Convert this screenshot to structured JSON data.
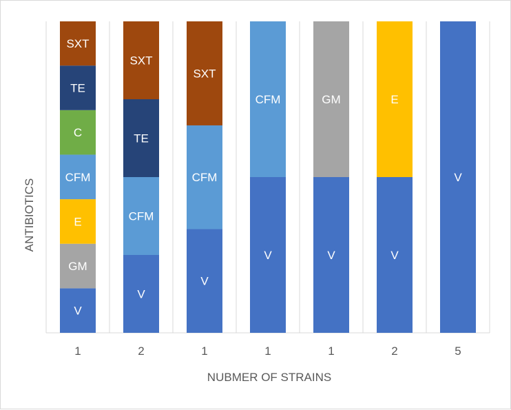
{
  "chart_data": {
    "type": "bar",
    "stacked": true,
    "title": "",
    "xlabel": "NUBMER OF STRAINS",
    "ylabel": "ANTIBIOTICS",
    "ylim": [
      0,
      100
    ],
    "grid": false,
    "legend": "none",
    "colors": {
      "V": "#4472c4",
      "GM": "#a5a5a5",
      "E": "#ffc000",
      "CFM": "#5b9bd5",
      "C": "#70ad47",
      "TE": "#264478",
      "SXT": "#9e480e"
    },
    "bars": [
      {
        "category": "1",
        "segments": [
          {
            "label": "V",
            "value": 14.3
          },
          {
            "label": "GM",
            "value": 14.3
          },
          {
            "label": "E",
            "value": 14.3
          },
          {
            "label": "CFM",
            "value": 14.3
          },
          {
            "label": "C",
            "value": 14.3
          },
          {
            "label": "TE",
            "value": 14.3
          },
          {
            "label": "SXT",
            "value": 14.2
          }
        ]
      },
      {
        "category": "2",
        "segments": [
          {
            "label": "V",
            "value": 25
          },
          {
            "label": "CFM",
            "value": 25
          },
          {
            "label": "TE",
            "value": 25
          },
          {
            "label": "SXT",
            "value": 25
          }
        ]
      },
      {
        "category": "1",
        "segments": [
          {
            "label": "V",
            "value": 33.3
          },
          {
            "label": "CFM",
            "value": 33.3
          },
          {
            "label": "SXT",
            "value": 33.4
          }
        ]
      },
      {
        "category": "1",
        "segments": [
          {
            "label": "V",
            "value": 50
          },
          {
            "label": "CFM",
            "value": 50
          }
        ]
      },
      {
        "category": "1",
        "segments": [
          {
            "label": "V",
            "value": 50
          },
          {
            "label": "GM",
            "value": 50
          }
        ]
      },
      {
        "category": "2",
        "segments": [
          {
            "label": "V",
            "value": 50
          },
          {
            "label": "E",
            "value": 50
          }
        ]
      },
      {
        "category": "5",
        "segments": [
          {
            "label": "V",
            "value": 100
          }
        ]
      }
    ]
  }
}
